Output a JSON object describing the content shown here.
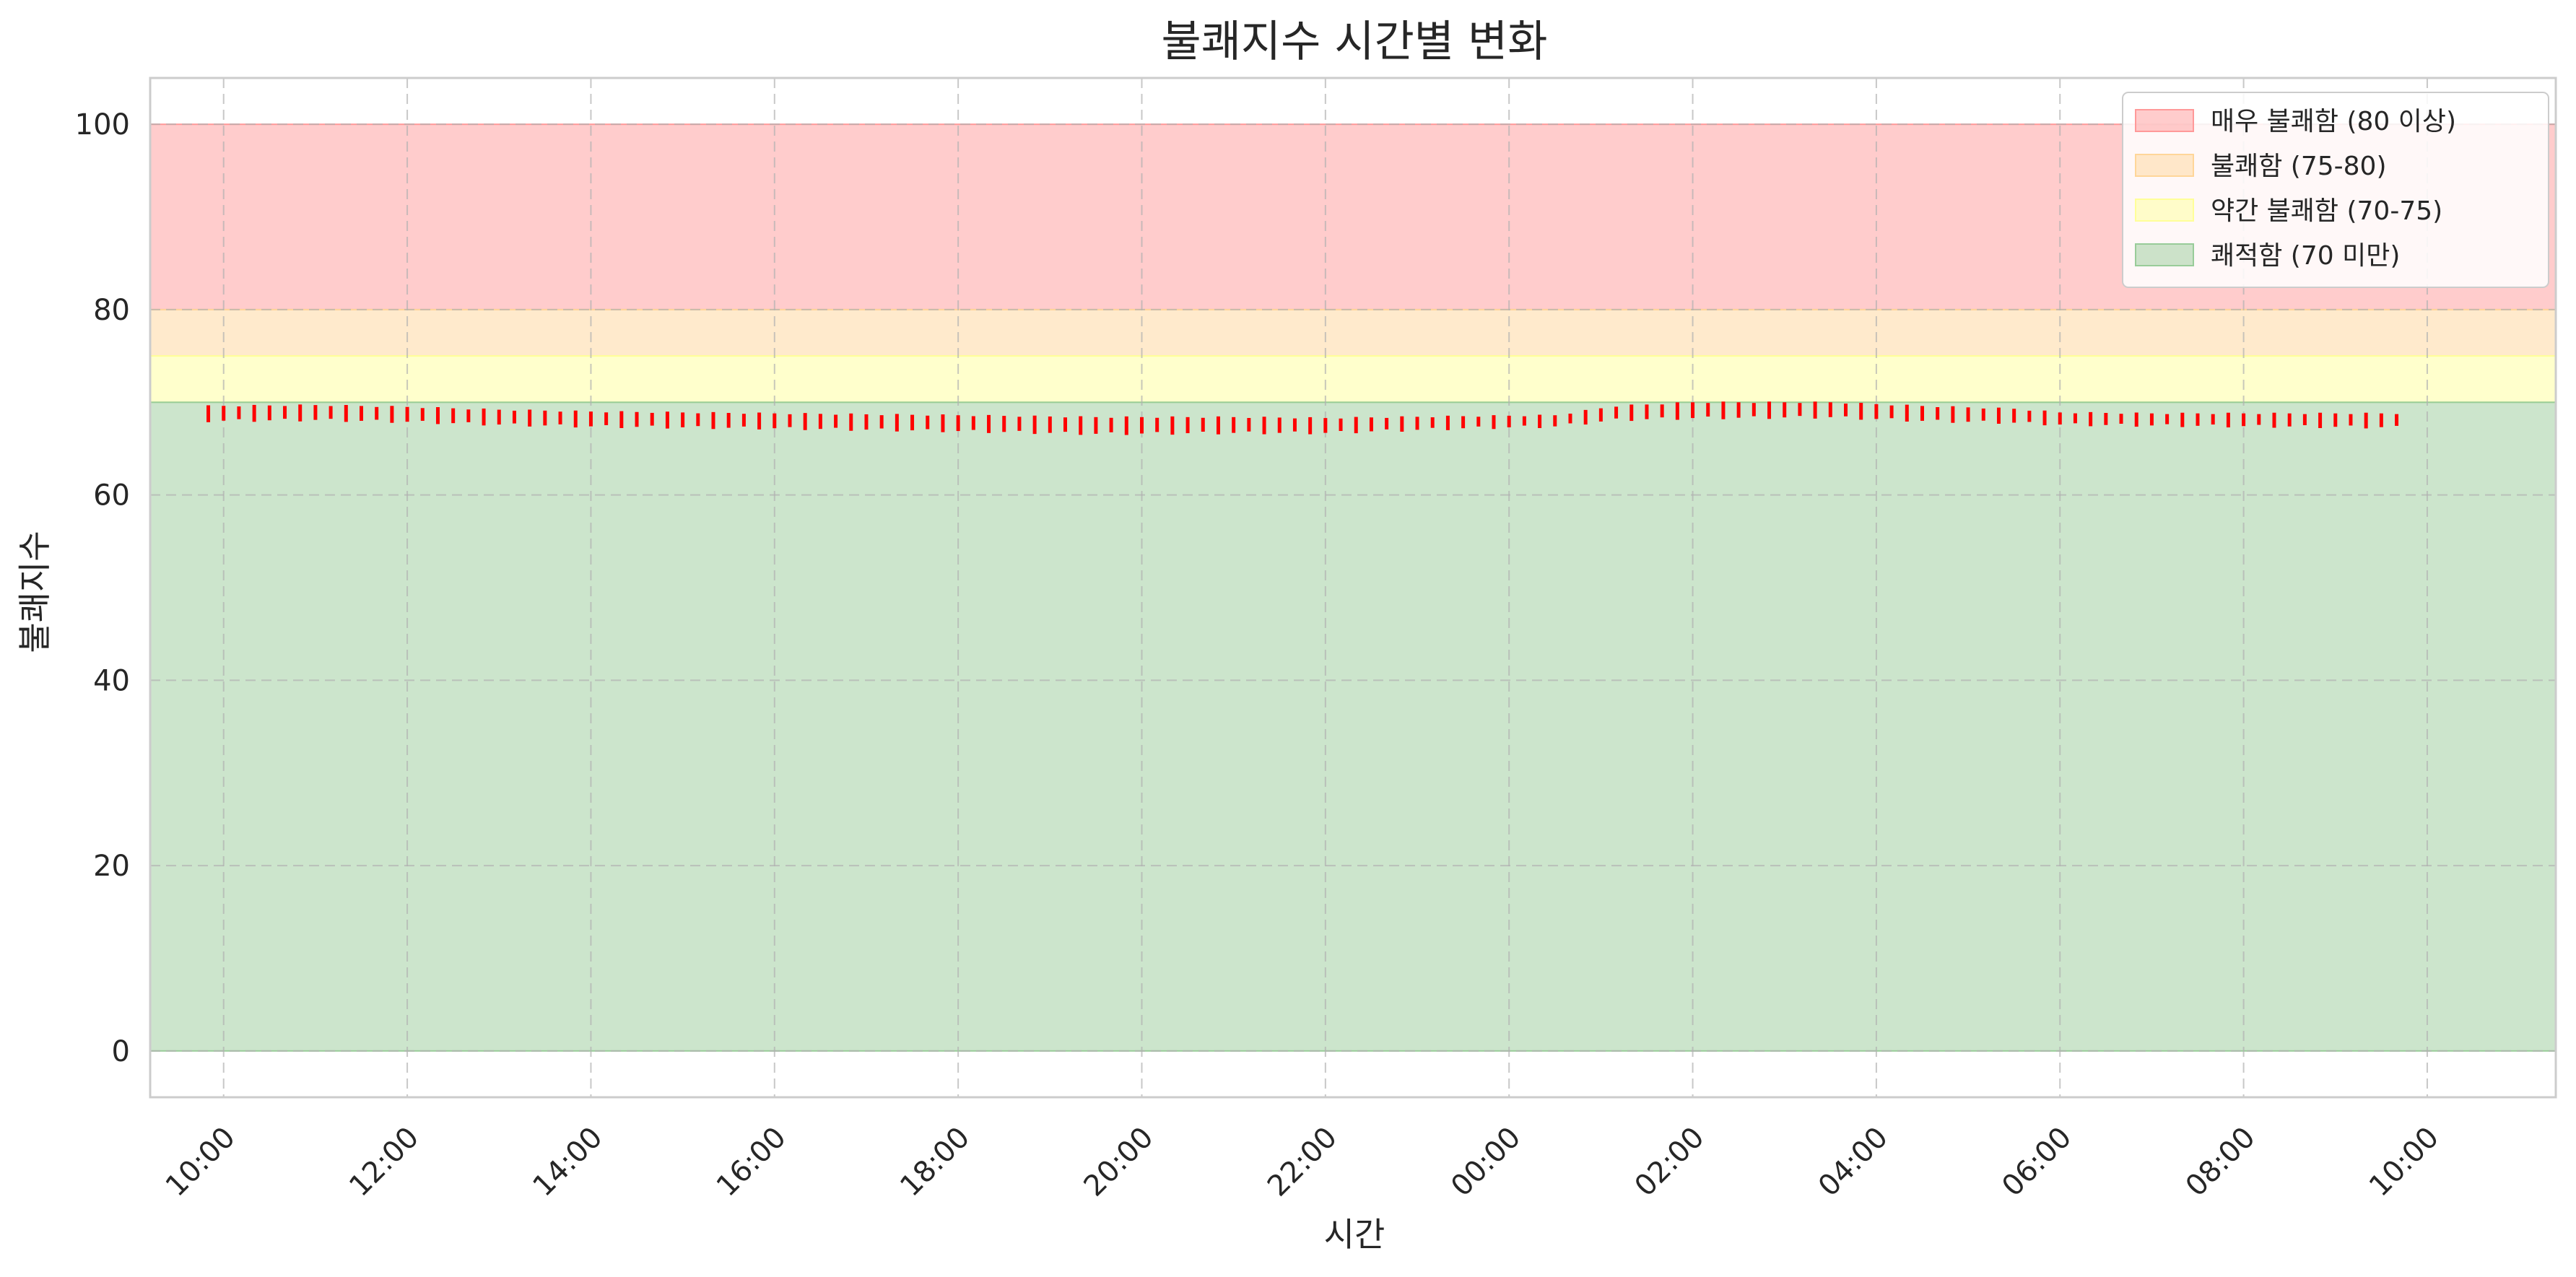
{
  "chart_data": {
    "type": "area",
    "title": "불쾌지수 시간별 변화",
    "xlabel": "시간",
    "ylabel": "불쾌지수",
    "ylim": [
      -5,
      105
    ],
    "y_ticks": [
      0,
      20,
      40,
      60,
      80,
      100
    ],
    "x_range": [
      "09:12",
      "11:24 +1d"
    ],
    "x_ticks": [
      "10:00",
      "12:00",
      "14:00",
      "16:00",
      "18:00",
      "20:00",
      "22:00",
      "00:00",
      "02:00",
      "04:00",
      "06:00",
      "08:00",
      "10:00"
    ],
    "grid": true,
    "legend_position": "top-right",
    "bands": [
      {
        "name": "매우 불쾌함 (80 이상)",
        "from": 80,
        "to": 100,
        "color": "#ff9999"
      },
      {
        "name": "불쾌함 (75-80)",
        "from": 75,
        "to": 80,
        "color": "#ffd699"
      },
      {
        "name": "약간 불쾌함 (70-75)",
        "from": 70,
        "to": 75,
        "color": "#ffff99"
      },
      {
        "name": "쾌적함 (70 미만)",
        "from": 0,
        "to": 70,
        "color": "#99cc99"
      }
    ],
    "series": [
      {
        "color": "#ff0000",
        "start": "09:50",
        "end": "09:45 +1d",
        "interval_minutes": 10,
        "keyframes": [
          {
            "time": "09:50",
            "low": 68.0,
            "high": 69.6
          },
          {
            "time": "11:00",
            "low": 68.1,
            "high": 69.7
          },
          {
            "time": "12:00",
            "low": 67.9,
            "high": 69.5
          },
          {
            "time": "13:00",
            "low": 67.6,
            "high": 69.2
          },
          {
            "time": "14:00",
            "low": 67.4,
            "high": 69.0
          },
          {
            "time": "16:00",
            "low": 67.2,
            "high": 68.8
          },
          {
            "time": "18:00",
            "low": 66.9,
            "high": 68.6
          },
          {
            "time": "19:30",
            "low": 66.6,
            "high": 68.4
          },
          {
            "time": "21:00",
            "low": 66.7,
            "high": 68.4
          },
          {
            "time": "22:00",
            "low": 66.7,
            "high": 68.3
          },
          {
            "time": "23:30",
            "low": 67.2,
            "high": 68.5
          },
          {
            "time": "00:30",
            "low": 67.4,
            "high": 68.6
          },
          {
            "time": "01:10",
            "low": 68.1,
            "high": 69.6
          },
          {
            "time": "02:00",
            "low": 68.3,
            "high": 70.0
          },
          {
            "time": "03:30",
            "low": 68.4,
            "high": 70.0
          },
          {
            "time": "04:30",
            "low": 68.0,
            "high": 69.6
          },
          {
            "time": "05:30",
            "low": 67.8,
            "high": 69.3
          },
          {
            "time": "06:00",
            "low": 67.6,
            "high": 68.9
          },
          {
            "time": "07:00",
            "low": 67.5,
            "high": 68.8
          },
          {
            "time": "09:45",
            "low": 67.3,
            "high": 68.8
          }
        ]
      }
    ]
  }
}
